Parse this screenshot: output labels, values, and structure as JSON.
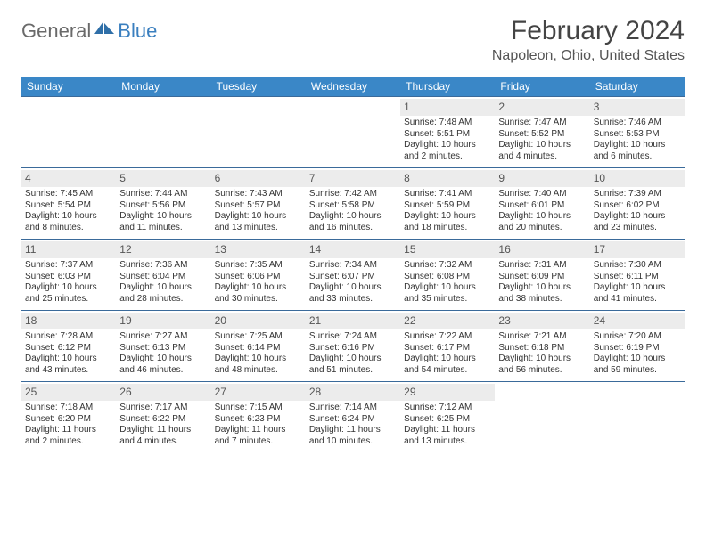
{
  "brand": {
    "part1": "General",
    "part2": "Blue"
  },
  "title": "February 2024",
  "location": "Napoleon, Ohio, United States",
  "colors": {
    "header_bg": "#3a87c7",
    "header_text": "#ffffff",
    "cell_border": "#3a6a9a",
    "daynum_bg": "#ececec",
    "text": "#333333",
    "title_color": "#444444",
    "logo_gray": "#6a6a6a",
    "logo_blue": "#3a7fbf"
  },
  "dayHeaders": [
    "Sunday",
    "Monday",
    "Tuesday",
    "Wednesday",
    "Thursday",
    "Friday",
    "Saturday"
  ],
  "weeks": [
    [
      null,
      null,
      null,
      null,
      {
        "d": "1",
        "sr": "7:48 AM",
        "ss": "5:51 PM",
        "dl1": "10 hours",
        "dl2": "and 2 minutes."
      },
      {
        "d": "2",
        "sr": "7:47 AM",
        "ss": "5:52 PM",
        "dl1": "10 hours",
        "dl2": "and 4 minutes."
      },
      {
        "d": "3",
        "sr": "7:46 AM",
        "ss": "5:53 PM",
        "dl1": "10 hours",
        "dl2": "and 6 minutes."
      }
    ],
    [
      {
        "d": "4",
        "sr": "7:45 AM",
        "ss": "5:54 PM",
        "dl1": "10 hours",
        "dl2": "and 8 minutes."
      },
      {
        "d": "5",
        "sr": "7:44 AM",
        "ss": "5:56 PM",
        "dl1": "10 hours",
        "dl2": "and 11 minutes."
      },
      {
        "d": "6",
        "sr": "7:43 AM",
        "ss": "5:57 PM",
        "dl1": "10 hours",
        "dl2": "and 13 minutes."
      },
      {
        "d": "7",
        "sr": "7:42 AM",
        "ss": "5:58 PM",
        "dl1": "10 hours",
        "dl2": "and 16 minutes."
      },
      {
        "d": "8",
        "sr": "7:41 AM",
        "ss": "5:59 PM",
        "dl1": "10 hours",
        "dl2": "and 18 minutes."
      },
      {
        "d": "9",
        "sr": "7:40 AM",
        "ss": "6:01 PM",
        "dl1": "10 hours",
        "dl2": "and 20 minutes."
      },
      {
        "d": "10",
        "sr": "7:39 AM",
        "ss": "6:02 PM",
        "dl1": "10 hours",
        "dl2": "and 23 minutes."
      }
    ],
    [
      {
        "d": "11",
        "sr": "7:37 AM",
        "ss": "6:03 PM",
        "dl1": "10 hours",
        "dl2": "and 25 minutes."
      },
      {
        "d": "12",
        "sr": "7:36 AM",
        "ss": "6:04 PM",
        "dl1": "10 hours",
        "dl2": "and 28 minutes."
      },
      {
        "d": "13",
        "sr": "7:35 AM",
        "ss": "6:06 PM",
        "dl1": "10 hours",
        "dl2": "and 30 minutes."
      },
      {
        "d": "14",
        "sr": "7:34 AM",
        "ss": "6:07 PM",
        "dl1": "10 hours",
        "dl2": "and 33 minutes."
      },
      {
        "d": "15",
        "sr": "7:32 AM",
        "ss": "6:08 PM",
        "dl1": "10 hours",
        "dl2": "and 35 minutes."
      },
      {
        "d": "16",
        "sr": "7:31 AM",
        "ss": "6:09 PM",
        "dl1": "10 hours",
        "dl2": "and 38 minutes."
      },
      {
        "d": "17",
        "sr": "7:30 AM",
        "ss": "6:11 PM",
        "dl1": "10 hours",
        "dl2": "and 41 minutes."
      }
    ],
    [
      {
        "d": "18",
        "sr": "7:28 AM",
        "ss": "6:12 PM",
        "dl1": "10 hours",
        "dl2": "and 43 minutes."
      },
      {
        "d": "19",
        "sr": "7:27 AM",
        "ss": "6:13 PM",
        "dl1": "10 hours",
        "dl2": "and 46 minutes."
      },
      {
        "d": "20",
        "sr": "7:25 AM",
        "ss": "6:14 PM",
        "dl1": "10 hours",
        "dl2": "and 48 minutes."
      },
      {
        "d": "21",
        "sr": "7:24 AM",
        "ss": "6:16 PM",
        "dl1": "10 hours",
        "dl2": "and 51 minutes."
      },
      {
        "d": "22",
        "sr": "7:22 AM",
        "ss": "6:17 PM",
        "dl1": "10 hours",
        "dl2": "and 54 minutes."
      },
      {
        "d": "23",
        "sr": "7:21 AM",
        "ss": "6:18 PM",
        "dl1": "10 hours",
        "dl2": "and 56 minutes."
      },
      {
        "d": "24",
        "sr": "7:20 AM",
        "ss": "6:19 PM",
        "dl1": "10 hours",
        "dl2": "and 59 minutes."
      }
    ],
    [
      {
        "d": "25",
        "sr": "7:18 AM",
        "ss": "6:20 PM",
        "dl1": "11 hours",
        "dl2": "and 2 minutes."
      },
      {
        "d": "26",
        "sr": "7:17 AM",
        "ss": "6:22 PM",
        "dl1": "11 hours",
        "dl2": "and 4 minutes."
      },
      {
        "d": "27",
        "sr": "7:15 AM",
        "ss": "6:23 PM",
        "dl1": "11 hours",
        "dl2": "and 7 minutes."
      },
      {
        "d": "28",
        "sr": "7:14 AM",
        "ss": "6:24 PM",
        "dl1": "11 hours",
        "dl2": "and 10 minutes."
      },
      {
        "d": "29",
        "sr": "7:12 AM",
        "ss": "6:25 PM",
        "dl1": "11 hours",
        "dl2": "and 13 minutes."
      },
      null,
      null
    ]
  ],
  "labels": {
    "sunrise": "Sunrise: ",
    "sunset": "Sunset: ",
    "daylight": "Daylight: "
  }
}
